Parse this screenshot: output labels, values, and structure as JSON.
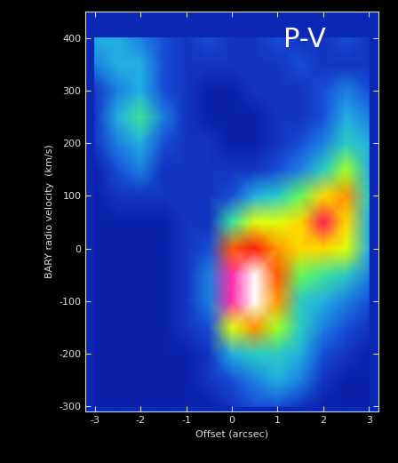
{
  "chart_data": {
    "type": "heatmap",
    "annotation": "P-V",
    "x_label": "Offset (arcsec)",
    "y_label": "BARY radio velocity  (km/s)",
    "xlim": [
      -3.2,
      3.2
    ],
    "ylim": [
      -310,
      450
    ],
    "xticks": [
      -3,
      -2,
      -1,
      0,
      1,
      2,
      3
    ],
    "yticks": [
      -300,
      -200,
      -100,
      0,
      100,
      200,
      300,
      400
    ],
    "x": [
      -3,
      -2.5,
      -2,
      -1.5,
      -1,
      -0.5,
      0,
      0.5,
      1,
      1.5,
      2,
      2.5,
      3
    ],
    "y": [
      -300,
      -250,
      -200,
      -150,
      -100,
      -50,
      0,
      50,
      100,
      150,
      200,
      250,
      300,
      350,
      400
    ],
    "cells": [
      [
        0.1,
        0.1,
        0.1,
        0.1,
        0.1,
        0.1,
        0.15,
        0.2,
        0.2,
        0.15,
        0.1,
        0.1,
        0.1
      ],
      [
        0.1,
        0.1,
        0.1,
        0.1,
        0.1,
        0.15,
        0.2,
        0.25,
        0.3,
        0.25,
        0.15,
        0.1,
        0.1
      ],
      [
        0.1,
        0.1,
        0.1,
        0.1,
        0.1,
        0.15,
        0.3,
        0.35,
        0.35,
        0.3,
        0.2,
        0.15,
        0.1
      ],
      [
        0.1,
        0.1,
        0.1,
        0.1,
        0.15,
        0.2,
        0.55,
        0.65,
        0.5,
        0.35,
        0.25,
        0.2,
        0.15
      ],
      [
        0.1,
        0.1,
        0.1,
        0.1,
        0.15,
        0.25,
        0.85,
        0.95,
        0.65,
        0.35,
        0.3,
        0.25,
        0.2
      ],
      [
        0.1,
        0.1,
        0.1,
        0.1,
        0.15,
        0.25,
        0.85,
        0.95,
        0.7,
        0.45,
        0.4,
        0.35,
        0.25
      ],
      [
        0.1,
        0.1,
        0.1,
        0.1,
        0.15,
        0.2,
        0.7,
        0.75,
        0.65,
        0.6,
        0.6,
        0.55,
        0.3
      ],
      [
        0.1,
        0.1,
        0.1,
        0.1,
        0.15,
        0.15,
        0.4,
        0.55,
        0.55,
        0.6,
        0.8,
        0.6,
        0.3
      ],
      [
        0.1,
        0.15,
        0.15,
        0.15,
        0.15,
        0.15,
        0.2,
        0.3,
        0.35,
        0.45,
        0.6,
        0.65,
        0.35
      ],
      [
        0.1,
        0.2,
        0.25,
        0.15,
        0.15,
        0.15,
        0.15,
        0.15,
        0.2,
        0.25,
        0.35,
        0.5,
        0.3
      ],
      [
        0.15,
        0.25,
        0.3,
        0.2,
        0.15,
        0.15,
        0.1,
        0.1,
        0.15,
        0.2,
        0.25,
        0.35,
        0.3
      ],
      [
        0.15,
        0.3,
        0.4,
        0.25,
        0.15,
        0.1,
        0.1,
        0.1,
        0.15,
        0.15,
        0.2,
        0.3,
        0.25
      ],
      [
        0.15,
        0.25,
        0.3,
        0.2,
        0.15,
        0.1,
        0.1,
        0.15,
        0.15,
        0.15,
        0.2,
        0.25,
        0.2
      ],
      [
        0.25,
        0.3,
        0.3,
        0.2,
        0.15,
        0.15,
        0.15,
        0.15,
        0.15,
        0.2,
        0.15,
        0.15,
        0.15
      ],
      [
        0.3,
        0.3,
        0.25,
        0.2,
        0.15,
        0.2,
        0.15,
        0.15,
        0.2,
        0.15,
        0.15,
        0.2,
        0.15
      ]
    ]
  }
}
